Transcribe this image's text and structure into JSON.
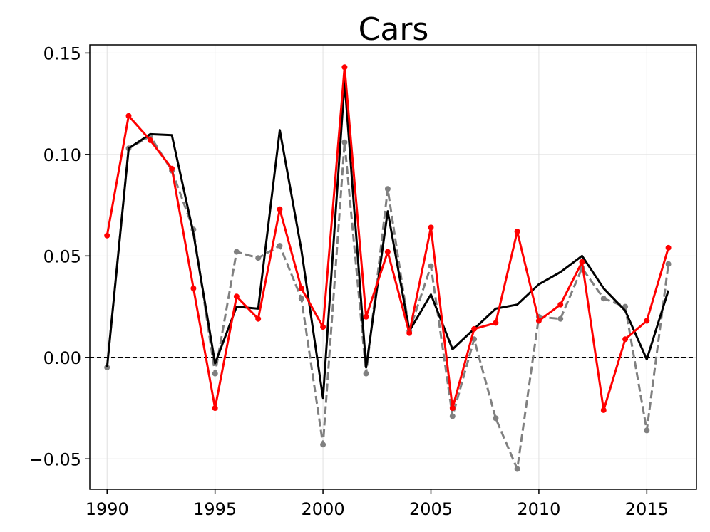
{
  "chart_data": {
    "type": "line",
    "title": "Cars",
    "xlabel": "",
    "ylabel": "",
    "xlim": [
      1989.2,
      2017.3
    ],
    "ylim": [
      -0.065,
      0.154
    ],
    "xticks": [
      1990,
      1995,
      2000,
      2005,
      2010,
      2015
    ],
    "xtick_labels": [
      "1990",
      "1995",
      "2000",
      "2005",
      "2010",
      "2015"
    ],
    "yticks": [
      -0.05,
      0.0,
      0.05,
      0.1,
      0.15
    ],
    "ytick_labels": [
      "−0.05",
      "0.00",
      "0.05",
      "0.10",
      "0.15"
    ],
    "grid": true,
    "reference_line": {
      "y": 0.0,
      "style": "dashed",
      "color": "#000000"
    },
    "x": [
      1990,
      1991,
      1992,
      1993,
      1994,
      1995,
      1996,
      1997,
      1998,
      1999,
      2000,
      2001,
      2002,
      2003,
      2004,
      2005,
      2006,
      2007,
      2008,
      2009,
      2010,
      2011,
      2012,
      2013,
      2014,
      2015,
      2016
    ],
    "series": [
      {
        "color": "#808080",
        "style": "dashed",
        "markers": true,
        "values": [
          -0.005,
          0.103,
          0.109,
          0.092,
          0.063,
          -0.008,
          0.052,
          0.049,
          0.055,
          0.029,
          -0.043,
          0.106,
          -0.008,
          0.083,
          0.013,
          0.045,
          -0.029,
          0.009,
          -0.03,
          -0.055,
          0.02,
          0.019,
          0.044,
          0.029,
          0.025,
          -0.036,
          0.046
        ]
      },
      {
        "color": "#000000",
        "style": "solid",
        "markers": false,
        "values": [
          -0.005,
          0.103,
          0.11,
          0.1095,
          0.061,
          -0.003,
          0.025,
          0.024,
          0.112,
          0.053,
          -0.02,
          0.136,
          -0.005,
          0.072,
          0.013,
          0.031,
          0.004,
          0.014,
          0.024,
          0.026,
          0.036,
          0.042,
          0.05,
          0.034,
          0.023,
          -0.001,
          0.033
        ]
      },
      {
        "color": "#ff0000",
        "style": "solid",
        "markers": true,
        "values": [
          0.06,
          0.119,
          0.107,
          0.093,
          0.034,
          -0.025,
          0.03,
          0.019,
          0.073,
          0.034,
          0.015,
          0.143,
          0.02,
          0.052,
          0.012,
          0.064,
          -0.025,
          0.014,
          0.017,
          0.062,
          0.018,
          0.026,
          0.047,
          -0.026,
          0.009,
          0.018,
          0.054
        ]
      }
    ]
  }
}
